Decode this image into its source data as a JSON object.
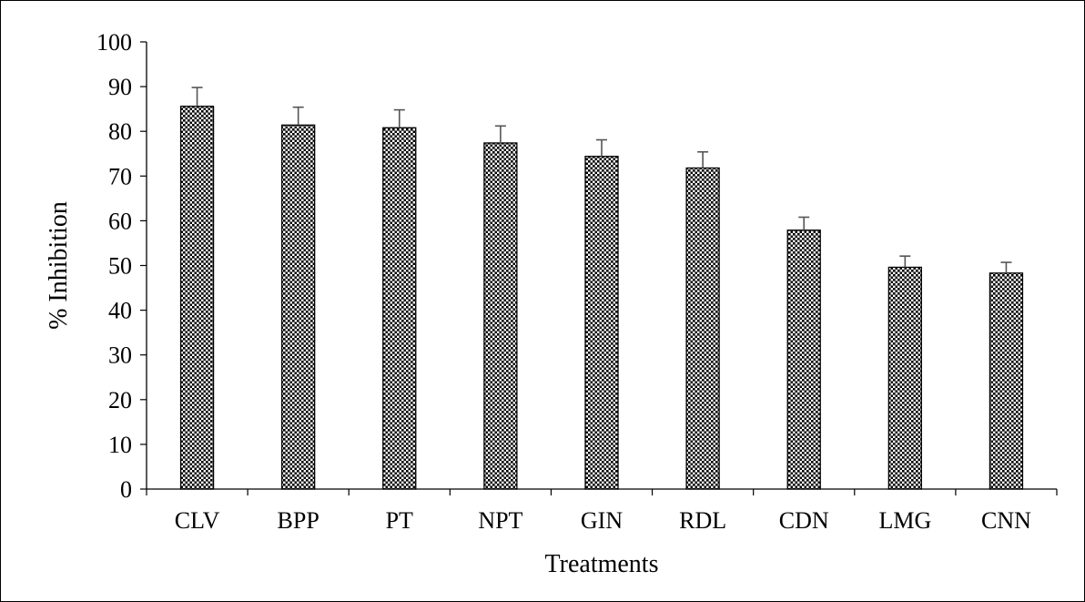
{
  "chart_data": {
    "type": "bar",
    "title": "",
    "xlabel": "Treatments",
    "ylabel": "% Inhibition",
    "categories": [
      "CLV",
      "BPP",
      "PT",
      "NPT",
      "GIN",
      "RDL",
      "CDN",
      "LMG",
      "CNN"
    ],
    "values": [
      85.6,
      81.4,
      80.8,
      77.4,
      74.4,
      71.8,
      57.9,
      49.6,
      48.3
    ],
    "error_bars": [
      4.2,
      4.0,
      4.0,
      3.8,
      3.7,
      3.6,
      2.9,
      2.5,
      2.4
    ],
    "ylim": [
      0,
      100
    ],
    "yticks": [
      0,
      10,
      20,
      30,
      40,
      50,
      60,
      70,
      80,
      90,
      100
    ],
    "grid": false,
    "legend": "none",
    "bar_fill": "dotted-pattern",
    "colors": {
      "bar_dots": "#000000",
      "bar_background": "#ffffff",
      "axis": "#000000",
      "error_bar": "#555555"
    }
  }
}
